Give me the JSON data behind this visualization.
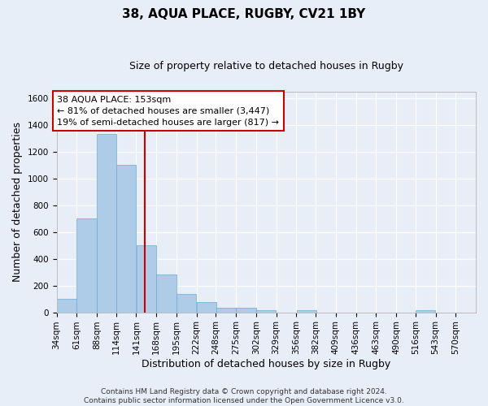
{
  "title": "38, AQUA PLACE, RUGBY, CV21 1BY",
  "subtitle": "Size of property relative to detached houses in Rugby",
  "xlabel": "Distribution of detached houses by size in Rugby",
  "ylabel": "Number of detached properties",
  "property_label": "38 AQUA PLACE: 153sqm",
  "annotation_line1": "← 81% of detached houses are smaller (3,447)",
  "annotation_line2": "19% of semi-detached houses are larger (817) →",
  "footer_line1": "Contains HM Land Registry data © Crown copyright and database right 2024.",
  "footer_line2": "Contains public sector information licensed under the Open Government Licence v3.0.",
  "bin_labels": [
    "34sqm",
    "61sqm",
    "88sqm",
    "114sqm",
    "141sqm",
    "168sqm",
    "195sqm",
    "222sqm",
    "248sqm",
    "275sqm",
    "302sqm",
    "329sqm",
    "356sqm",
    "382sqm",
    "409sqm",
    "436sqm",
    "463sqm",
    "490sqm",
    "516sqm",
    "543sqm",
    "570sqm"
  ],
  "bin_left_edges": [
    34,
    61,
    88,
    114,
    141,
    168,
    195,
    222,
    248,
    275,
    302,
    329,
    356,
    382,
    409,
    436,
    463,
    490,
    516,
    543,
    570
  ],
  "bar_heights": [
    100,
    700,
    1330,
    1100,
    500,
    280,
    140,
    75,
    35,
    35,
    15,
    0,
    15,
    0,
    0,
    0,
    0,
    0,
    15,
    0,
    0
  ],
  "bar_color": "#aecbe8",
  "bar_edge_color": "#6aaad4",
  "vline_x": 153,
  "vline_color": "#cc0000",
  "ylim": [
    0,
    1650
  ],
  "yticks": [
    0,
    200,
    400,
    600,
    800,
    1000,
    1200,
    1400,
    1600
  ],
  "bg_color": "#e8eef8",
  "grid_color": "#ffffff",
  "annotation_box_facecolor": "#ffffff",
  "annotation_box_edgecolor": "#cc0000",
  "title_fontsize": 11,
  "subtitle_fontsize": 9,
  "ylabel_fontsize": 9,
  "xlabel_fontsize": 9,
  "tick_fontsize": 7.5,
  "annotation_fontsize": 8,
  "footer_fontsize": 6.5
}
